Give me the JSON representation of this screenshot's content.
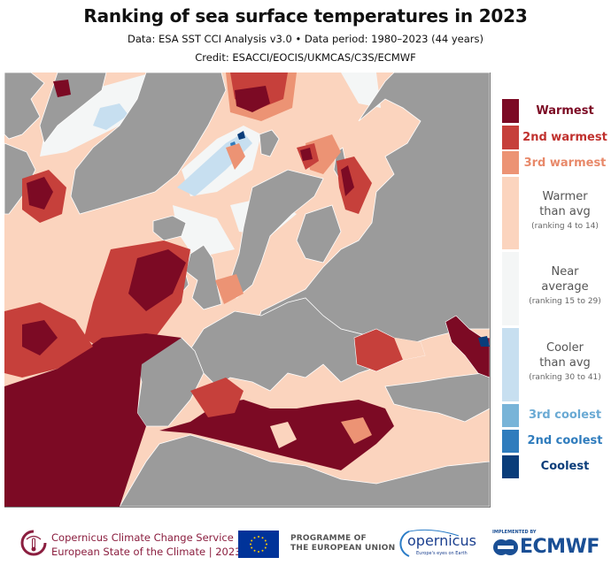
{
  "header": {
    "title": "Ranking of sea surface temperatures in 2023",
    "data_line": "Data: ESA SST CCI Analysis v3.0 • Data period: 1980–2023 (44 years)",
    "credit": "Credit: ESACCI/EOCIS/UKMCAS/C3S/ECMWF"
  },
  "colors": {
    "land": "#9b9b9b",
    "warmest": "#7c0a24",
    "second_warmest": "#c6403b",
    "third_warmest": "#ec9374",
    "warmer": "#fbd4be",
    "near": "#f4f6f6",
    "cooler": "#c7dff0",
    "third_coolest": "#78b4d8",
    "second_coolest": "#2f7cbd",
    "coolest": "#0a3d7a"
  },
  "legend": {
    "items": [
      {
        "label": "Warmest",
        "color": "#7c0a24",
        "text_color": "#7c0a24"
      },
      {
        "label": "2nd warmest",
        "color": "#c6403b",
        "text_color": "#c0312e"
      },
      {
        "label": "3rd warmest",
        "color": "#ec9374",
        "text_color": "#e8896a"
      },
      {
        "label": "Warmer",
        "label2": "than avg",
        "note": "(ranking 4 to 14)",
        "color": "#fbd4be"
      },
      {
        "label": "Near",
        "label2": "average",
        "note": "(ranking 15 to 29)",
        "color": "#f4f6f6"
      },
      {
        "label": "Cooler",
        "label2": "than avg",
        "note": "(ranking 30 to 41)",
        "color": "#c7dff0"
      },
      {
        "label": "3rd coolest",
        "color": "#78b4d8",
        "text_color": "#6aaad4"
      },
      {
        "label": "2nd coolest",
        "color": "#2f7cbd",
        "text_color": "#2f7cbd"
      },
      {
        "label": "Coolest",
        "color": "#0a3d7a",
        "text_color": "#0a3d7a"
      }
    ]
  },
  "footer": {
    "c3s_line1": "Copernicus Climate Change Service",
    "c3s_line2": "European State of the Climate | 2023",
    "eu_line1": "PROGRAMME OF",
    "eu_line2": "THE EUROPEAN UNION",
    "copernicus": "opernicus",
    "copernicus_tag": "Europe's eyes on Earth",
    "ecmwf_impl": "IMPLEMENTED BY",
    "ecmwf": "ECMWF"
  }
}
